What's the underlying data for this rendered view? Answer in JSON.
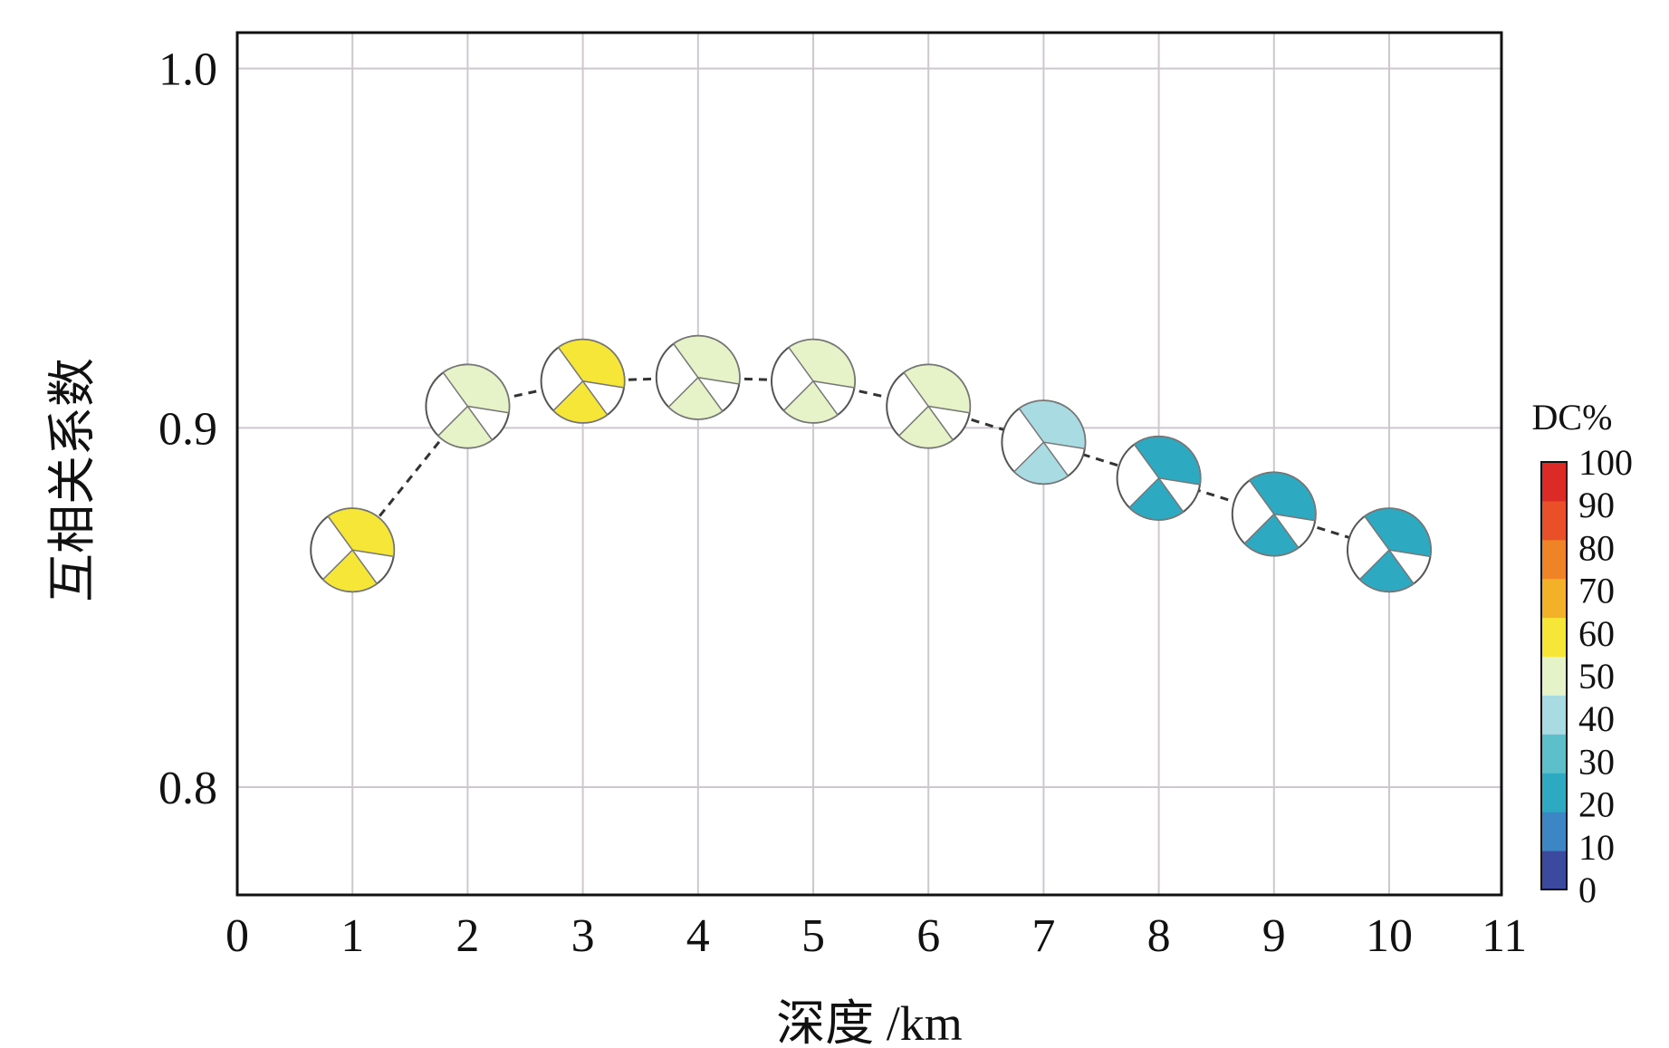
{
  "chart_data": {
    "type": "scatter",
    "title": "",
    "xlabel": "深度 /km",
    "ylabel": "互相关系数",
    "xlim": [
      0,
      11
    ],
    "ylim": [
      0.77,
      1.01
    ],
    "x_ticks": [
      "0",
      "1",
      "2",
      "3",
      "4",
      "5",
      "6",
      "7",
      "8",
      "9",
      "10",
      "11"
    ],
    "y_ticks": [
      "0.8",
      "0.9",
      "1.0"
    ],
    "y_tick_values": [
      0.8,
      0.9,
      1.0
    ],
    "grid": true,
    "connector": "dashed-line",
    "points": [
      {
        "x": 1.0,
        "y": 0.866,
        "dc": 62
      },
      {
        "x": 2.0,
        "y": 0.906,
        "dc": 52
      },
      {
        "x": 3.0,
        "y": 0.913,
        "dc": 68
      },
      {
        "x": 4.0,
        "y": 0.914,
        "dc": 52
      },
      {
        "x": 5.0,
        "y": 0.913,
        "dc": 52
      },
      {
        "x": 6.0,
        "y": 0.906,
        "dc": 52
      },
      {
        "x": 7.0,
        "y": 0.896,
        "dc": 42
      },
      {
        "x": 8.0,
        "y": 0.886,
        "dc": 22
      },
      {
        "x": 9.0,
        "y": 0.876,
        "dc": 22
      },
      {
        "x": 10.0,
        "y": 0.866,
        "dc": 20
      }
    ],
    "colorbar": {
      "title": "DC%",
      "placement": "right",
      "ticks": [
        "100",
        "90",
        "80",
        "70",
        "60",
        "50",
        "40",
        "30",
        "20",
        "10",
        "0"
      ],
      "colors": [
        "#3b4a9e",
        "#3d86c6",
        "#2ea9c2",
        "#5dbfca",
        "#a8dbe2",
        "#e6f2c8",
        "#f6e637",
        "#f2b128",
        "#ee8425",
        "#e9502a",
        "#dc2a26"
      ]
    }
  }
}
